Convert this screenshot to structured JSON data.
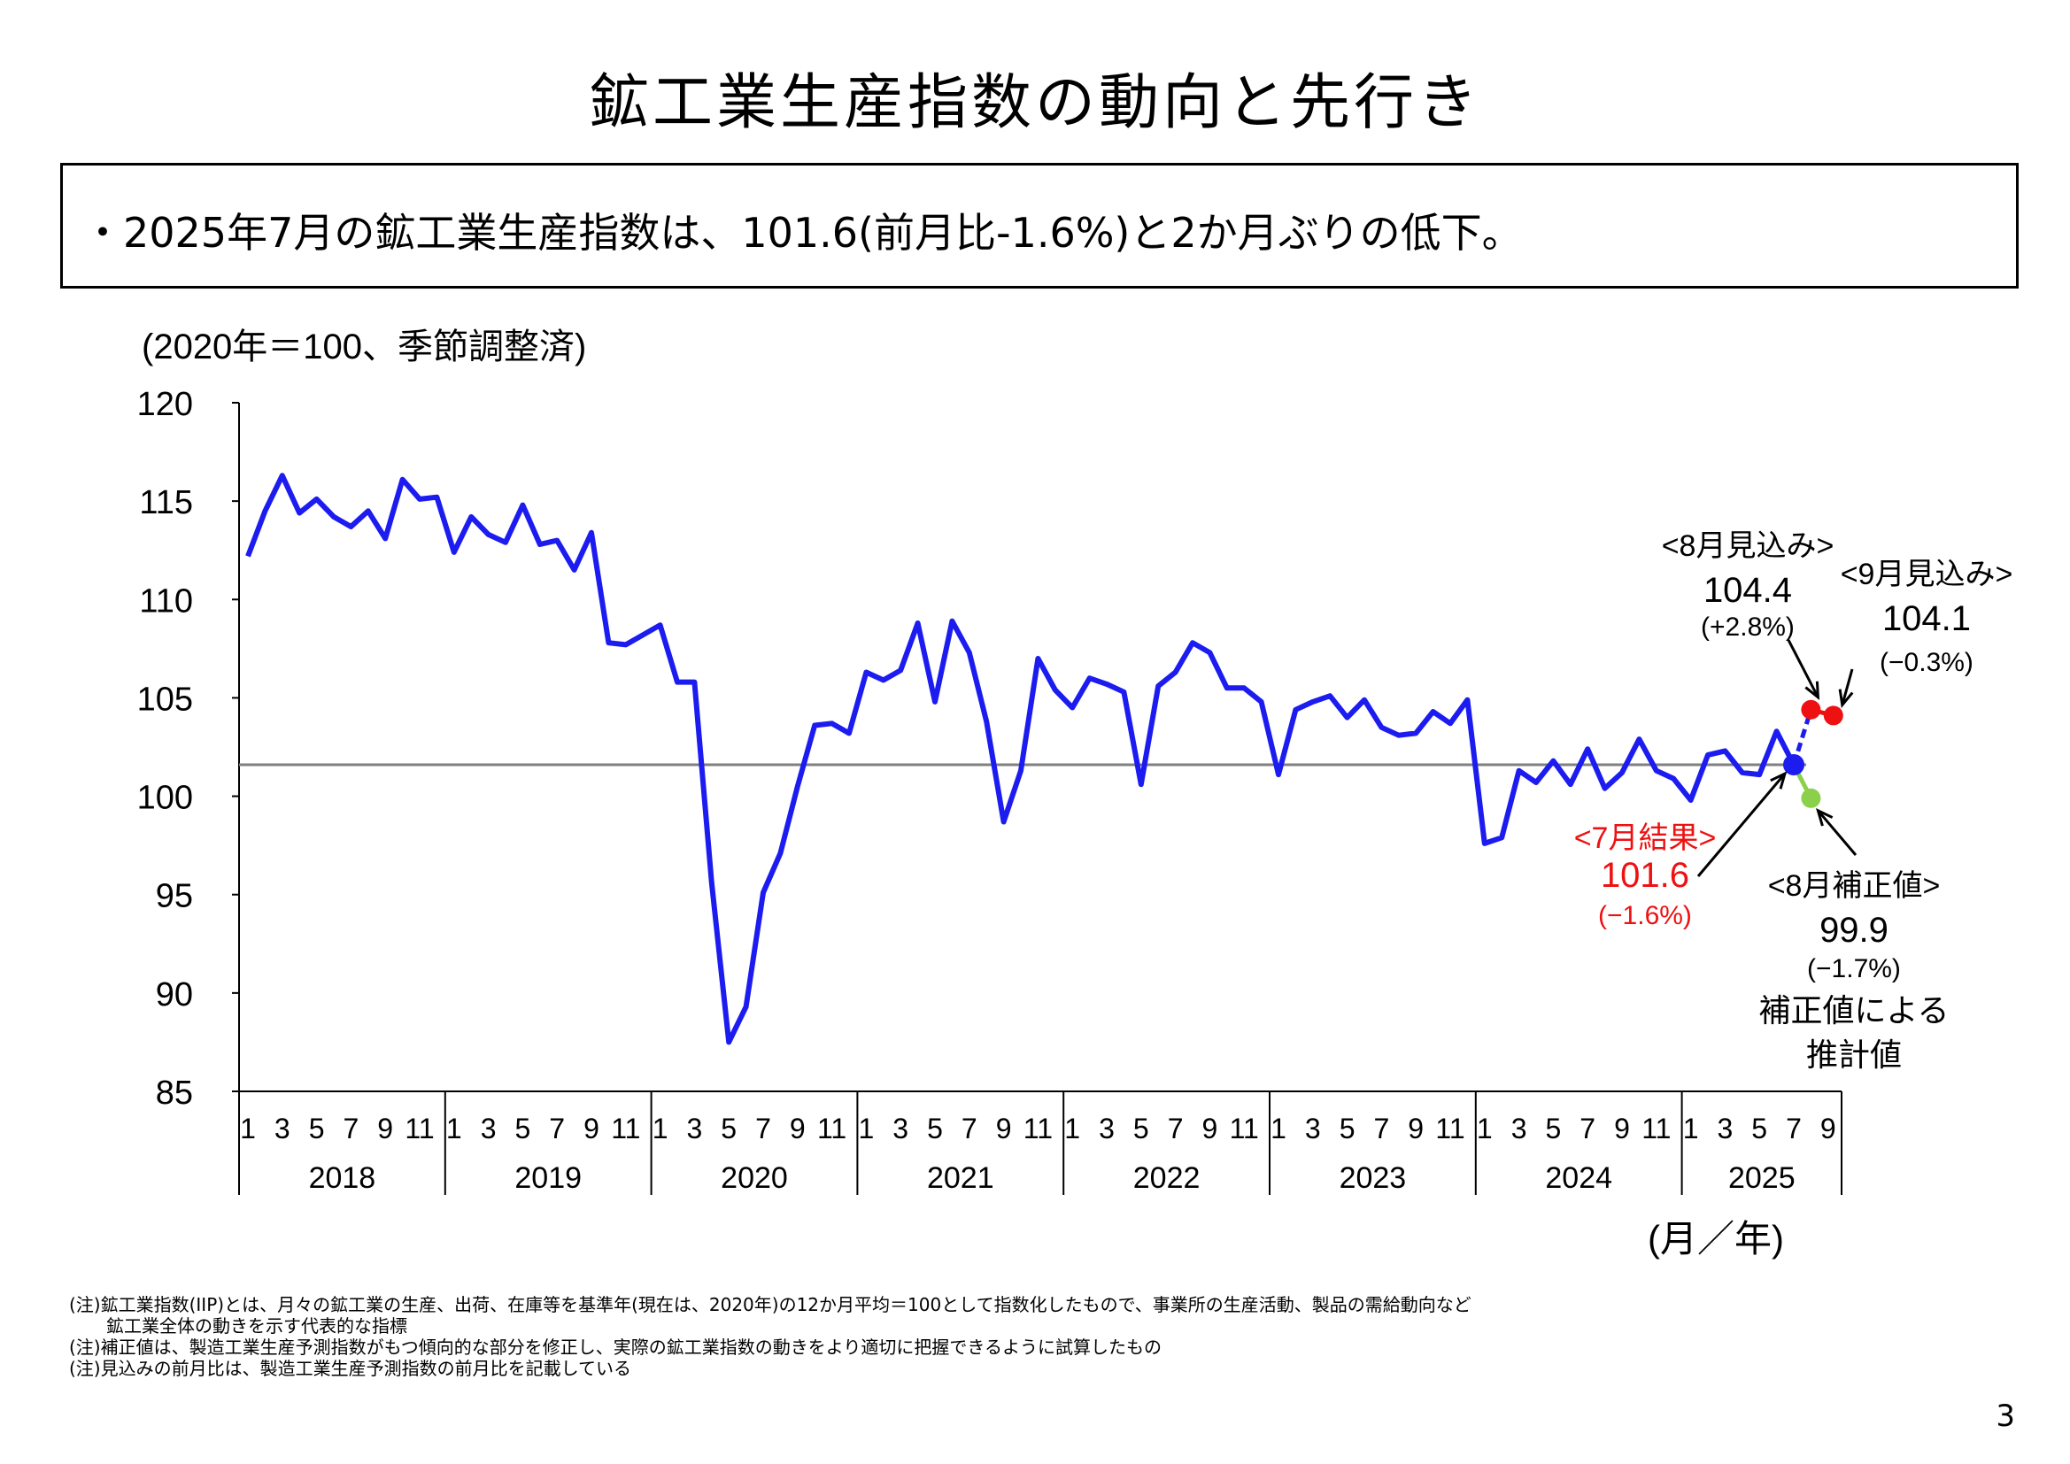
{
  "title": "鉱工業生産指数の動向と先行き",
  "summary": "・2025年7月の鉱工業生産指数は、101.6(前月比-1.6%)と2か月ぶりの低下。",
  "colors": {
    "line": "#1c1cf0",
    "reference": "#808080",
    "forecast": "#ee1111",
    "corrected": "#8bd04a",
    "result_text": "#ee1111"
  },
  "notes": [
    "(注)鉱工業指数(IIP)とは、月々の鉱工業の生産、出荷、在庫等を基準年(現在は、2020年)の12か月平均＝100として指数化したもので、事業所の生産活動、製品の需給動向など",
    "鉱工業全体の動きを示す代表的な指標",
    "(注)補正値は、製造工業生産予測指数がもつ傾向的な部分を修正し、実際の鉱工業指数の動きをより適切に把握できるように試算したもの",
    "(注)見込みの前月比は、製造工業生産予測指数の前月比を記載している"
  ],
  "page_number": "3",
  "chart_data": {
    "type": "line",
    "unit_label": "(2020年＝100、季節調整済)",
    "xlabel": "(月／年)",
    "ylim": [
      85,
      120
    ],
    "yticks": [
      "120",
      "115",
      "110",
      "105",
      "100",
      "95",
      "90",
      "85"
    ],
    "years": [
      "2018",
      "2019",
      "2020",
      "2021",
      "2022",
      "2023",
      "2024",
      "2025"
    ],
    "month_ticks": [
      "1",
      "3",
      "5",
      "7",
      "9",
      "11"
    ],
    "month_ticks_2025": [
      "1",
      "3",
      "5",
      "7",
      "9"
    ],
    "reference_value": 101.6,
    "series": [
      {
        "start": "2018-01",
        "values": [
          112.2,
          114.5,
          116.3,
          114.4,
          115.1,
          114.2,
          113.7,
          114.5,
          113.1,
          116.1,
          115.1,
          115.2,
          112.4,
          114.2,
          113.3,
          112.9,
          114.8,
          112.8,
          113.0,
          111.5,
          113.4,
          107.8,
          107.7,
          108.2,
          108.7,
          105.8,
          105.8,
          95.6,
          87.5,
          89.3,
          95.1,
          97.1,
          100.5,
          103.6,
          103.7,
          103.2,
          106.3,
          105.9,
          106.4,
          108.8,
          104.8,
          108.9,
          107.3,
          103.8,
          98.7,
          101.3,
          107.0,
          105.4,
          104.5,
          106.0,
          105.7,
          105.3,
          100.6,
          105.6,
          106.3,
          107.8,
          107.3,
          105.5,
          105.5,
          104.8,
          101.1,
          104.4,
          104.8,
          105.1,
          104.0,
          104.9,
          103.5,
          103.1,
          103.2,
          104.3,
          103.7,
          104.9,
          97.6,
          97.9,
          101.3,
          100.7,
          101.8,
          100.6,
          102.4,
          100.4,
          101.2,
          102.9,
          101.3,
          100.9,
          99.8,
          102.1,
          102.3,
          101.2,
          101.1,
          103.3,
          101.6
        ]
      }
    ],
    "forecasts": [
      {
        "label": "<8月見込み>",
        "value": 104.4,
        "value_text": "104.4",
        "change_text": "(+2.8%)",
        "month": "2025-08"
      },
      {
        "label": "<9月見込み>",
        "value": 104.1,
        "value_text": "104.1",
        "change_text": "(−0.3%)",
        "month": "2025-09"
      }
    ],
    "corrected": {
      "label": "<8月補正値>",
      "value": 99.9,
      "value_text": "99.9",
      "change_text": "(−1.7%)",
      "desc1": "補正値による",
      "desc2": "推計値",
      "month": "2025-08"
    },
    "result": {
      "label": "<7月結果>",
      "value": 101.6,
      "value_text": "101.6",
      "change_text": "(−1.6%)",
      "month": "2025-07"
    }
  }
}
